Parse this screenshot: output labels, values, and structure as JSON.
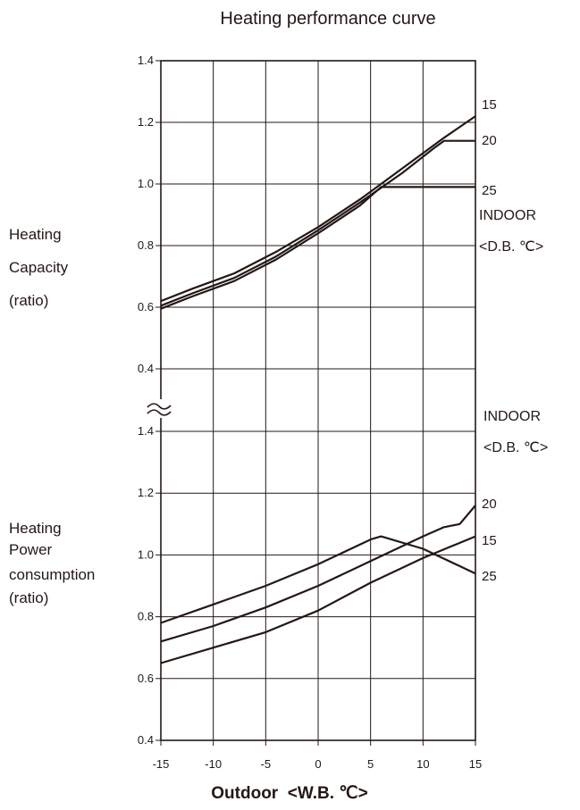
{
  "chart_data": [
    {
      "type": "line",
      "title": "Heating performance curve",
      "ylabel": [
        "Heating",
        "Capacity",
        "(ratio)"
      ],
      "xlabel": "Outdoor  <W.B. ℃>",
      "legend_title": [
        "INDOOR",
        "<D.B. ℃>"
      ],
      "ylim": [
        0.4,
        1.4
      ],
      "yticks": [
        0.4,
        0.6,
        0.8,
        1.0,
        1.2,
        1.4
      ],
      "xlim": [
        -15,
        15
      ],
      "xticks": [
        -15,
        -10,
        -5,
        0,
        5,
        10,
        15
      ],
      "grid": true,
      "series": [
        {
          "name": "15",
          "x": [
            -15,
            -12,
            -8,
            -4,
            0,
            4,
            8,
            12,
            15
          ],
          "values": [
            0.62,
            0.66,
            0.71,
            0.78,
            0.86,
            0.95,
            1.05,
            1.15,
            1.22
          ]
        },
        {
          "name": "20",
          "x": [
            -15,
            -12,
            -8,
            -4,
            0,
            4,
            8,
            11,
            12,
            15
          ],
          "values": [
            0.605,
            0.645,
            0.695,
            0.765,
            0.85,
            0.94,
            1.035,
            1.115,
            1.14,
            1.14
          ]
        },
        {
          "name": "25",
          "x": [
            -15,
            -12,
            -8,
            -4,
            0,
            4,
            6,
            15
          ],
          "values": [
            0.595,
            0.635,
            0.685,
            0.755,
            0.84,
            0.93,
            0.99,
            0.99
          ]
        }
      ]
    },
    {
      "type": "line",
      "ylabel": [
        "Heating",
        "Power",
        "consumption",
        "(ratio)"
      ],
      "xlabel": "Outdoor  <W.B. ℃>",
      "legend_title": [
        "INDOOR",
        "<D.B. ℃>"
      ],
      "ylim": [
        0.4,
        1.4
      ],
      "yticks": [
        0.4,
        0.6,
        0.8,
        1.0,
        1.2,
        1.4
      ],
      "xlim": [
        -15,
        15
      ],
      "xticks": [
        -15,
        -10,
        -5,
        0,
        5,
        10,
        15
      ],
      "grid": true,
      "series": [
        {
          "name": "20",
          "x": [
            -15,
            -10,
            -5,
            0,
            5,
            10,
            12,
            13.5,
            15
          ],
          "values": [
            0.72,
            0.77,
            0.83,
            0.9,
            0.98,
            1.06,
            1.09,
            1.1,
            1.16
          ]
        },
        {
          "name": "15",
          "x": [
            -15,
            -10,
            -5,
            0,
            5,
            10,
            15
          ],
          "values": [
            0.65,
            0.7,
            0.75,
            0.82,
            0.91,
            0.99,
            1.06
          ]
        },
        {
          "name": "25",
          "x": [
            -15,
            -10,
            -5,
            0,
            5,
            6,
            10,
            15
          ],
          "values": [
            0.78,
            0.84,
            0.9,
            0.97,
            1.05,
            1.06,
            1.02,
            0.94
          ]
        }
      ]
    }
  ]
}
